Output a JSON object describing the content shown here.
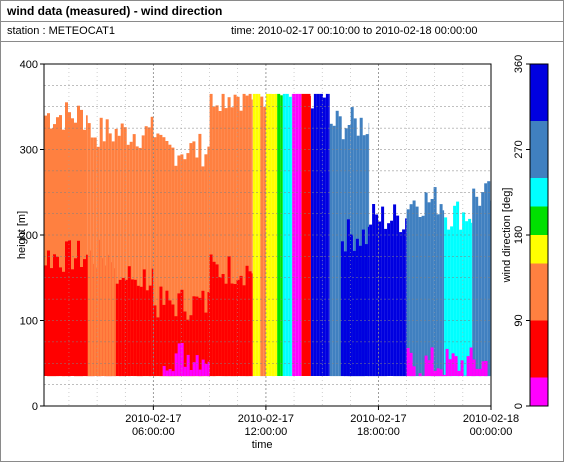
{
  "header": {
    "title": "wind data (measured) - wind direction",
    "station_label": "station : METEOCAT1",
    "time_label": "time: 2010-02-17 00:10:00 to 2010-02-18 00:00:00"
  },
  "chart_data": {
    "type": "heatmap",
    "title": "wind data (measured) - wind direction",
    "xlabel": "time",
    "ylabel": "height [m]",
    "colorbar_label": "wind direction [deg]",
    "x_ticks": [
      "2010-02-17\n06:00:00",
      "2010-02-17\n12:00:00",
      "2010-02-17\n18:00:00",
      "2010-02-18\n00:00:00"
    ],
    "x_tick_hours": [
      6,
      12,
      18,
      24
    ],
    "xlim_hours": [
      0.17,
      24
    ],
    "y_ticks": [
      0,
      100,
      200,
      300,
      400
    ],
    "ylim": [
      0,
      400
    ],
    "grid": true,
    "colorbar": {
      "ticks": [
        0,
        90,
        180,
        270,
        360
      ],
      "bins": [
        {
          "from": 0,
          "to": 30,
          "color": "#ff00ff"
        },
        {
          "from": 30,
          "to": 60,
          "color": "#ff0000"
        },
        {
          "from": 60,
          "to": 90,
          "color": "#ff0000"
        },
        {
          "from": 90,
          "to": 120,
          "color": "#ff8040"
        },
        {
          "from": 120,
          "to": 150,
          "color": "#ff8040"
        },
        {
          "from": 150,
          "to": 180,
          "color": "#ffff00"
        },
        {
          "from": 180,
          "to": 210,
          "color": "#00e000"
        },
        {
          "from": 210,
          "to": 240,
          "color": "#00ffff"
        },
        {
          "from": 240,
          "to": 270,
          "color": "#4080c0"
        },
        {
          "from": 270,
          "to": 300,
          "color": "#4080c0"
        },
        {
          "from": 300,
          "to": 330,
          "color": "#0000e0"
        },
        {
          "from": 330,
          "to": 360,
          "color": "#0000e0"
        }
      ]
    },
    "data_bottom_height": 35,
    "regions": [
      {
        "t0": 0.17,
        "t1": 2.5,
        "dir": 135,
        "top": 340
      },
      {
        "t0": 0.17,
        "t1": 4.0,
        "dir": 45,
        "top": 175
      },
      {
        "t0": 2.5,
        "t1": 6.0,
        "dir": 135,
        "top": 320
      },
      {
        "t0": 4.0,
        "t1": 6.0,
        "dir": 45,
        "top": 150
      },
      {
        "t0": 6.0,
        "t1": 9.0,
        "dir": 120,
        "top": 300
      },
      {
        "t0": 6.0,
        "t1": 9.0,
        "dir": 40,
        "top": 120
      },
      {
        "t0": 6.5,
        "t1": 9.0,
        "dir": 15,
        "top": 60
      },
      {
        "t0": 9.0,
        "t1": 11.3,
        "dir": 130,
        "top": 365
      },
      {
        "t0": 9.0,
        "t1": 11.3,
        "dir": 50,
        "top": 160
      },
      {
        "t0": 11.3,
        "t1": 11.7,
        "dir": 165,
        "top": 365
      },
      {
        "t0": 11.7,
        "t1": 12.0,
        "dir": 120,
        "top": 365
      },
      {
        "t0": 12.0,
        "t1": 12.6,
        "dir": 165,
        "top": 365
      },
      {
        "t0": 12.6,
        "t1": 12.9,
        "dir": 195,
        "top": 365
      },
      {
        "t0": 12.9,
        "t1": 13.4,
        "dir": 225,
        "top": 365
      },
      {
        "t0": 13.4,
        "t1": 13.9,
        "dir": 20,
        "top": 365
      },
      {
        "t0": 13.9,
        "t1": 14.4,
        "dir": 45,
        "top": 365
      },
      {
        "t0": 14.4,
        "t1": 15.4,
        "dir": 315,
        "top": 365
      },
      {
        "t0": 15.4,
        "t1": 17.5,
        "dir": 285,
        "top": 330
      },
      {
        "t0": 16.0,
        "t1": 17.5,
        "dir": 315,
        "top": 200
      },
      {
        "t0": 17.5,
        "t1": 19.5,
        "dir": 315,
        "top": 220
      },
      {
        "t0": 19.5,
        "t1": 21.5,
        "dir": 285,
        "top": 240
      },
      {
        "t0": 21.5,
        "t1": 23.0,
        "dir": 225,
        "top": 225
      },
      {
        "t0": 23.0,
        "t1": 24.0,
        "dir": 285,
        "top": 245
      },
      {
        "t0": 19.5,
        "t1": 24.0,
        "dir": 15,
        "top": 50
      }
    ]
  }
}
